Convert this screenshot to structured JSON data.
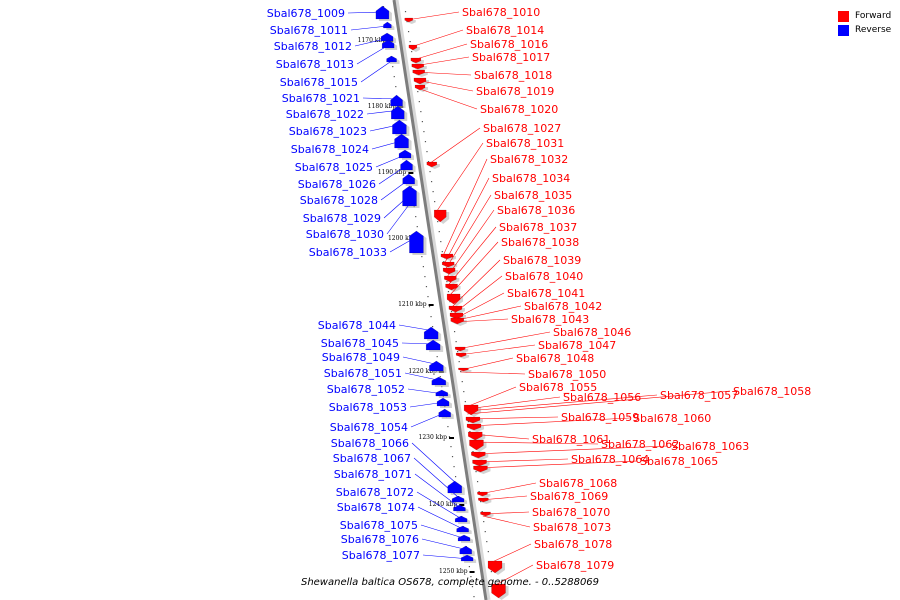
{
  "caption": "Shewanella baltica OS678, complete genome. - 0..5288069",
  "legend": [
    {
      "label": "Forward",
      "color": "#ff0000"
    },
    {
      "label": "Reverse",
      "color": "#0000ff"
    }
  ],
  "scale_labels": [
    "1170 kbp",
    "1180 kbp",
    "1190 kbp",
    "1200 kbp",
    "1210 kbp",
    "1220 kbp",
    "1230 kbp",
    "1240 kbp",
    "1250 kbp"
  ],
  "reverse_genes": [
    "Sbal678_1009",
    "Sbal678_1011",
    "Sbal678_1012",
    "Sbal678_1013",
    "Sbal678_1015",
    "Sbal678_1021",
    "Sbal678_1022",
    "Sbal678_1023",
    "Sbal678_1024",
    "Sbal678_1025",
    "Sbal678_1026",
    "Sbal678_1028",
    "Sbal678_1029",
    "Sbal678_1030",
    "Sbal678_1033",
    "Sbal678_1044",
    "Sbal678_1045",
    "Sbal678_1049",
    "Sbal678_1051",
    "Sbal678_1052",
    "Sbal678_1053",
    "Sbal678_1054",
    "Sbal678_1066",
    "Sbal678_1067",
    "Sbal678_1071",
    "Sbal678_1072",
    "Sbal678_1074",
    "Sbal678_1075",
    "Sbal678_1076",
    "Sbal678_1077"
  ],
  "forward_genes": [
    "Sbal678_1010",
    "Sbal678_1014",
    "Sbal678_1016",
    "Sbal678_1017",
    "Sbal678_1018",
    "Sbal678_1019",
    "Sbal678_1020",
    "Sbal678_1027",
    "Sbal678_1031",
    "Sbal678_1032",
    "Sbal678_1034",
    "Sbal678_1035",
    "Sbal678_1036",
    "Sbal678_1037",
    "Sbal678_1038",
    "Sbal678_1039",
    "Sbal678_1040",
    "Sbal678_1041",
    "Sbal678_1042",
    "Sbal678_1043",
    "Sbal678_1046",
    "Sbal678_1047",
    "Sbal678_1048",
    "Sbal678_1050",
    "Sbal678_1055",
    "Sbal678_1056",
    "Sbal678_1057",
    "Sbal678_1058",
    "Sbal678_1059",
    "Sbal678_1060",
    "Sbal678_1061",
    "Sbal678_1062",
    "Sbal678_1063",
    "Sbal678_1064",
    "Sbal678_1065",
    "Sbal678_1068",
    "Sbal678_1069",
    "Sbal678_1070",
    "Sbal678_1073",
    "Sbal678_1078",
    "Sbal678_1079"
  ]
}
